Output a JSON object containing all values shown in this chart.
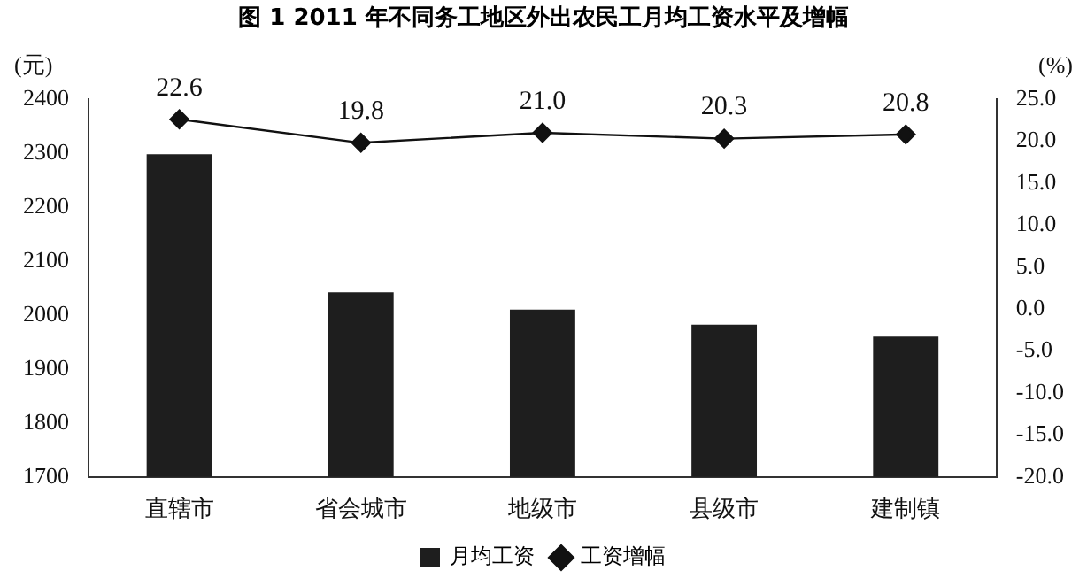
{
  "chart_data": {
    "type": "bar",
    "title": "图 1  2011 年不同务工地区外出农民工月均工资水平及增幅",
    "ylabel": "(元)",
    "y2label": "(%)",
    "categories": [
      "直辖市",
      "省会城市",
      "地级市",
      "县级市",
      "建制镇"
    ],
    "series": [
      {
        "name": "月均工资",
        "color": "#1e1e1e",
        "values": [
          2298,
          2042,
          2010,
          1982,
          1960
        ]
      },
      {
        "name": "工资增幅",
        "type": "line",
        "axis": "y2",
        "color": "#111111",
        "values": [
          22.6,
          19.8,
          21.0,
          20.3,
          20.8
        ],
        "value_labels": [
          "22.6",
          "19.8",
          "21.0",
          "20.3",
          "20.8"
        ]
      }
    ],
    "ylim": [
      1700,
      2400
    ],
    "yticks": [
      1700,
      1800,
      1900,
      2000,
      2100,
      2200,
      2300,
      2400
    ],
    "y2lim": [
      -20,
      25
    ],
    "y2ticks": [
      {
        "value": -20,
        "label": "-20.0"
      },
      {
        "value": -15,
        "label": "-15.0"
      },
      {
        "value": -10,
        "label": "-10.0"
      },
      {
        "value": -5,
        "label": "-5.0"
      },
      {
        "value": 0,
        "label": "0.0"
      },
      {
        "value": 5,
        "label": "5.0"
      },
      {
        "value": 10,
        "label": "10.0"
      },
      {
        "value": 15,
        "label": "15.0"
      },
      {
        "value": 20,
        "label": "20.0"
      },
      {
        "value": 25,
        "label": "25.0"
      }
    ],
    "grid": false,
    "legend": "bottom",
    "marker": "diamond",
    "line_style": "solid"
  }
}
